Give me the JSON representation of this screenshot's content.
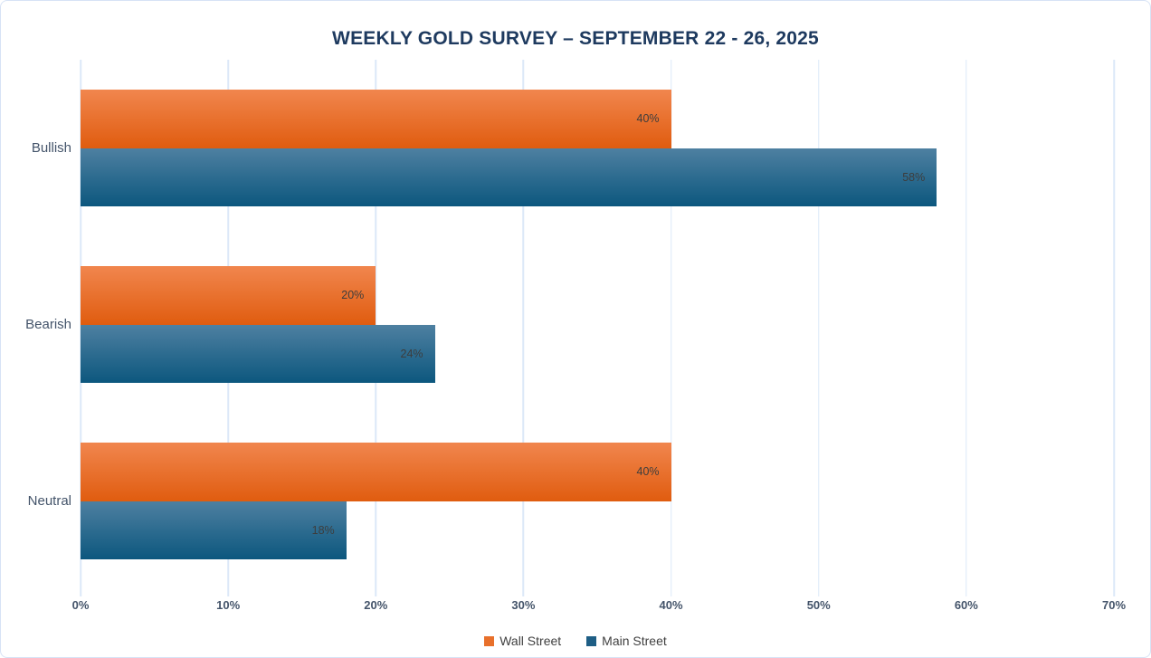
{
  "chart_data": {
    "type": "bar",
    "orientation": "horizontal",
    "title": "WEEKLY GOLD SURVEY – SEPTEMBER 22 - 26, 2025",
    "categories": [
      "Bullish",
      "Bearish",
      "Neutral"
    ],
    "series": [
      {
        "name": "Wall Street",
        "values": [
          40,
          20,
          40
        ],
        "data_labels": [
          "40%",
          "20%",
          "40%"
        ],
        "legend_color": "#e8702b"
      },
      {
        "name": "Main Street",
        "values": [
          58,
          24,
          18
        ],
        "data_labels": [
          "58%",
          "24%",
          "18%"
        ],
        "legend_color": "#1e5e85"
      }
    ],
    "xlabel": "",
    "ylabel": "",
    "xlim": [
      0,
      70
    ],
    "x_ticks": [
      "0%",
      "10%",
      "20%",
      "30%",
      "40%",
      "50%",
      "60%",
      "70%"
    ],
    "x_tick_values": [
      0,
      10,
      20,
      30,
      40,
      50,
      60,
      70
    ],
    "grid": true,
    "legend_position": "bottom"
  },
  "colors": {
    "title": "#1e3a5f",
    "wall_street_gradient_top": "#f1864e",
    "wall_street_gradient_bottom": "#e05c0f",
    "main_street_gradient_top": "#4e80a1",
    "main_street_gradient_bottom": "#0c577e",
    "gridline": "#dce8f8",
    "axis_text": "#44546a",
    "data_label_text": "#3d3d3d",
    "card_border": "#d7e3f6"
  }
}
